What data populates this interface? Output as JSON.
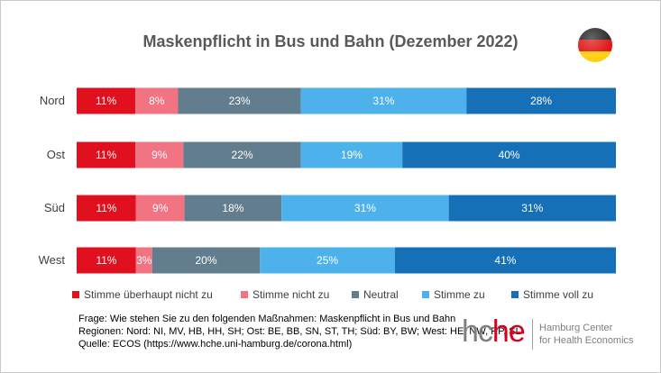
{
  "chart_data": {
    "type": "bar",
    "orientation": "horizontal",
    "stacked": true,
    "percent_stacked": true,
    "title": "Maskenpflicht in Bus und Bahn (Dezember 2022)",
    "categories": [
      "Nord",
      "Ost",
      "Süd",
      "West"
    ],
    "series": [
      {
        "name": "Stimme überhaupt nicht zu",
        "color": "#e0101f",
        "values": [
          11,
          11,
          11,
          11
        ]
      },
      {
        "name": "Stimme nicht zu",
        "color": "#f27382",
        "values": [
          8,
          9,
          9,
          3
        ]
      },
      {
        "name": "Neutral",
        "color": "#617d8e",
        "values": [
          23,
          22,
          18,
          20
        ]
      },
      {
        "name": "Stimme zu",
        "color": "#4db2ec",
        "values": [
          31,
          19,
          31,
          25
        ]
      },
      {
        "name": "Stimme voll zu",
        "color": "#1670b8",
        "values": [
          28,
          40,
          31,
          41
        ]
      }
    ],
    "value_suffix": "%",
    "grid": false,
    "legend_position": "bottom"
  },
  "footnotes": {
    "question": "Frage: Wie stehen Sie zu den folgenden Maßnahmen: Maskenpflicht in Bus und Bahn",
    "regions": "Regionen: Nord: NI, MV, HB, HH, SH; Ost: BE, BB, SN, ST, TH; Süd: BY, BW; West: HE, NW, RP, SL",
    "source": "Quelle: ECOS (https://www.hche.uni-hamburg.de/corona.html)"
  },
  "logo": {
    "mark_gray": "hc",
    "mark_red": "he",
    "line1": "Hamburg Center",
    "line2": "for Health Economics"
  },
  "flag_icon": "germany-flag-icon"
}
